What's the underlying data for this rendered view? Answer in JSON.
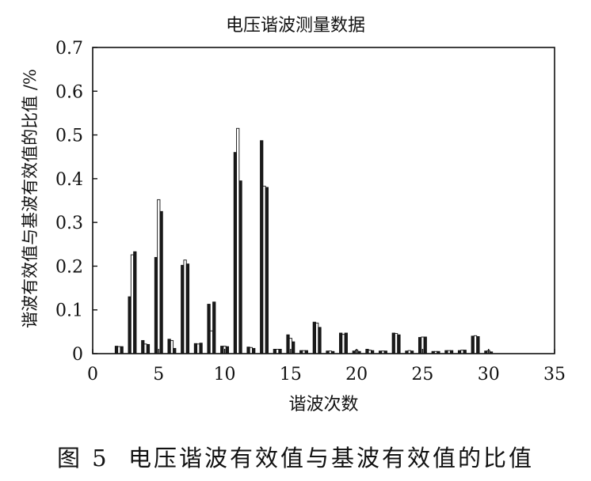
{
  "figure_caption": "图 5  电压谐波有效值与基波有效值的比值",
  "chart_data": {
    "type": "bar",
    "title": "电压谐波测量数据",
    "xlabel": "谐波次数",
    "ylabel": "谐波有效值与基波有效值的比值 /%",
    "xlim": [
      0,
      35
    ],
    "ylim": [
      0,
      0.7
    ],
    "xticks": [
      0,
      5,
      10,
      15,
      20,
      25,
      30,
      35
    ],
    "yticks": [
      0,
      0.1,
      0.2,
      0.3,
      0.4,
      0.5,
      0.6,
      0.7
    ],
    "ytick_labels": [
      "0",
      "0.1",
      "0.2",
      "0.3",
      "0.4",
      "0.5",
      "0.6",
      "0.7"
    ],
    "grid": false,
    "series_colors": [
      "#1a1a1a",
      "#ffffff",
      "#1a1a1a"
    ],
    "categories": [
      2,
      3,
      4,
      5,
      6,
      7,
      8,
      9,
      10,
      11,
      12,
      13,
      14,
      15,
      16,
      17,
      18,
      19,
      20,
      21,
      22,
      23,
      24,
      25,
      26,
      27,
      28,
      29,
      30
    ],
    "series": [
      {
        "values": [
          0.017,
          0.13,
          0.03,
          0.22,
          0.033,
          0.202,
          0.023,
          0.113,
          0.017,
          0.46,
          0.015,
          0.487,
          0.01,
          0.043,
          0.007,
          0.072,
          0.006,
          0.047,
          0.006,
          0.01,
          0.006,
          0.047,
          0.006,
          0.037,
          0.005,
          0.007,
          0.007,
          0.04,
          0.006
        ]
      },
      {
        "values": [
          0.016,
          0.226,
          0.022,
          0.352,
          0.03,
          0.214,
          0.022,
          0.052,
          0.017,
          0.515,
          0.014,
          0.383,
          0.01,
          0.035,
          0.007,
          0.07,
          0.006,
          0.044,
          0.008,
          0.008,
          0.006,
          0.046,
          0.007,
          0.038,
          0.005,
          0.007,
          0.008,
          0.041,
          0.007
        ]
      },
      {
        "values": [
          0.016,
          0.233,
          0.021,
          0.325,
          0.012,
          0.205,
          0.024,
          0.118,
          0.016,
          0.395,
          0.012,
          0.38,
          0.01,
          0.027,
          0.007,
          0.06,
          0.005,
          0.047,
          0.005,
          0.007,
          0.006,
          0.043,
          0.006,
          0.038,
          0.005,
          0.007,
          0.008,
          0.039,
          0.004
        ]
      }
    ]
  }
}
